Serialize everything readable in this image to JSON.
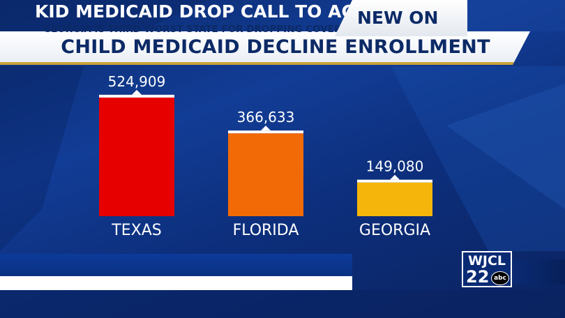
{
  "chart_data": {
    "type": "bar",
    "title": "CHILD MEDICAID DECLINE ENROLLMENT",
    "categories": [
      "TEXAS",
      "FLORIDA",
      "GEORGIA"
    ],
    "values": [
      524909,
      366633,
      149080
    ],
    "value_labels": [
      "524,909",
      "366,633",
      "149,080"
    ],
    "colors": [
      "#e60000",
      "#f26a06",
      "#f5b50a"
    ],
    "ylim": [
      0,
      600000
    ],
    "grid": false,
    "legend": "none"
  },
  "lower_third": {
    "headline": "KID MEDICAID DROP CALL TO ACTION",
    "subheadline": "GEORGIA IS THIRD WORST STATE FOR DROPPING COVERAGE FOR KIDS",
    "tag": "NEW ON"
  },
  "logo": {
    "call_letters": "WJCL",
    "channel": "22",
    "network": "abc"
  }
}
